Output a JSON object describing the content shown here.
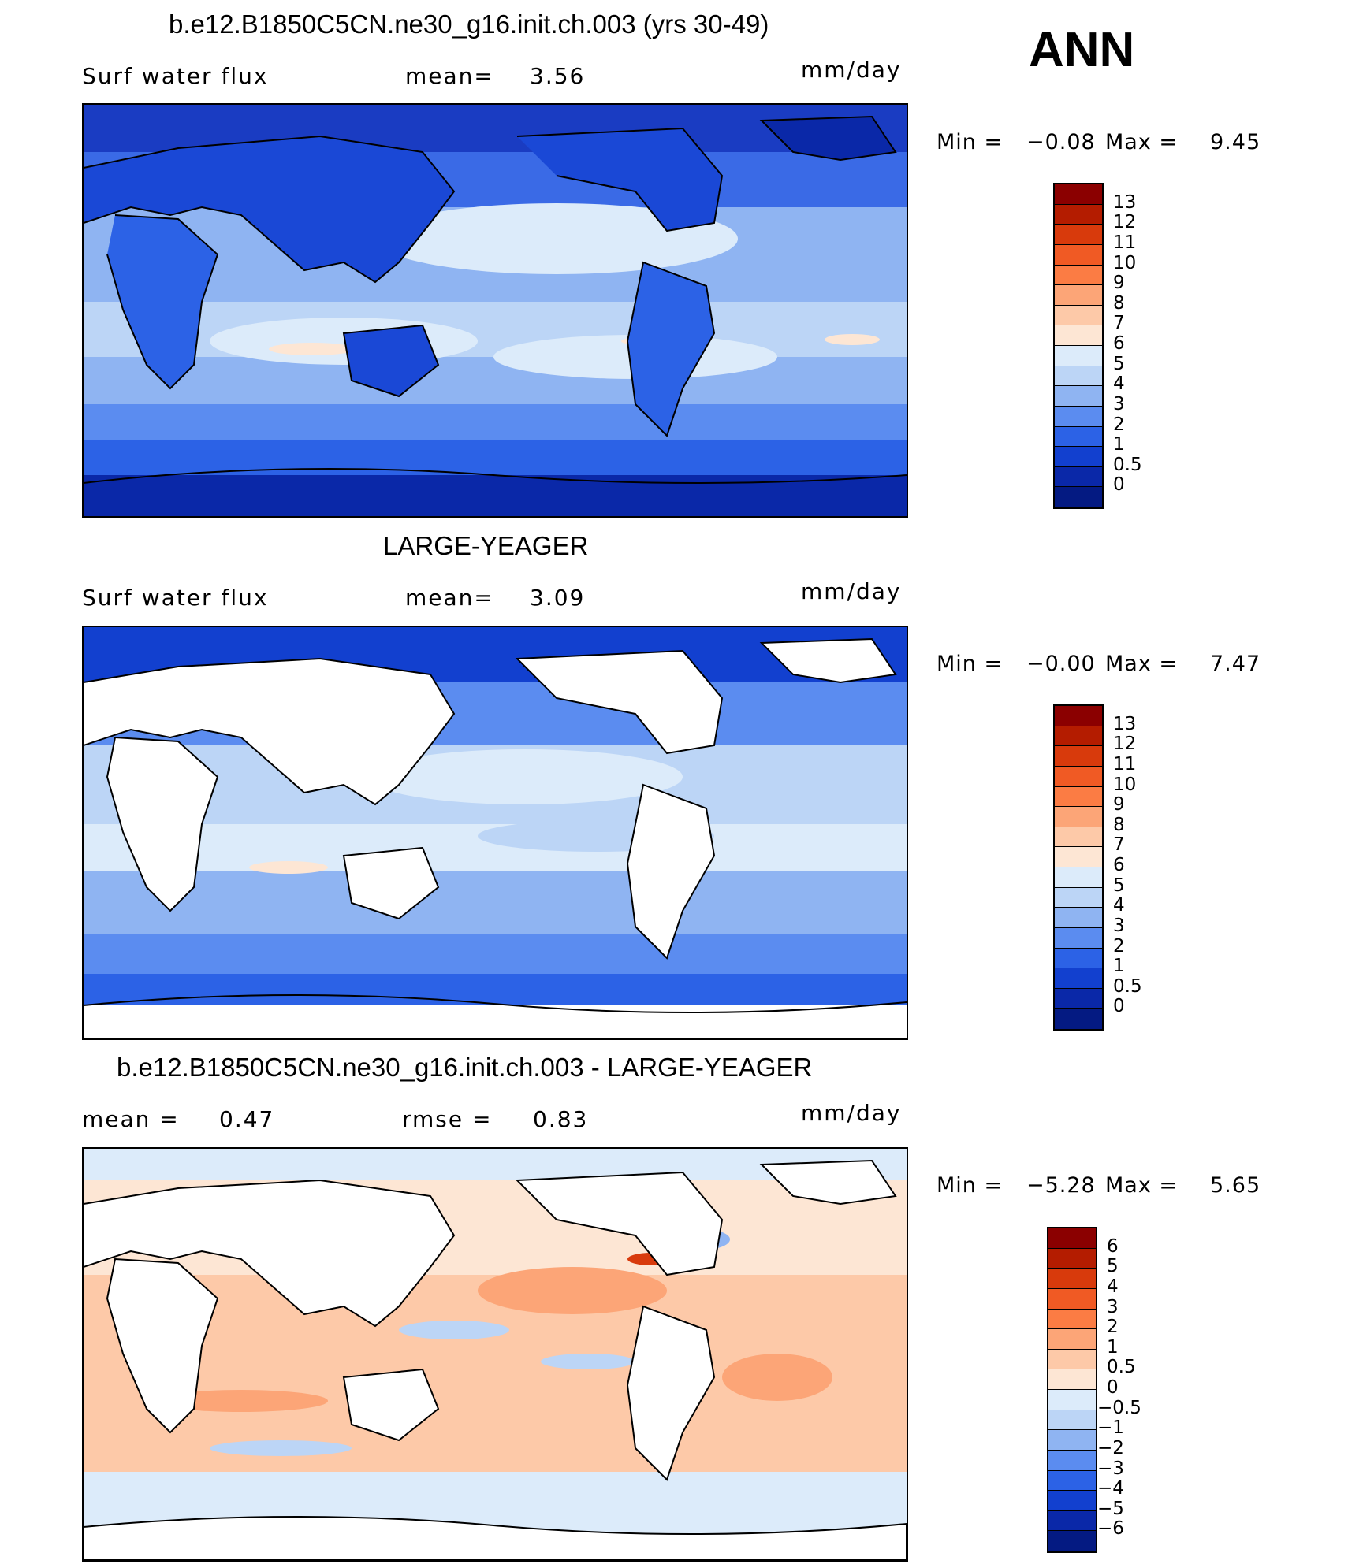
{
  "panel1": {
    "title": "b.e12.B1850C5CN.ne30_g16.init.ch.003 (yrs 30-49)",
    "left_label": "Surf water flux",
    "mid_label": "mean=",
    "mid_value": "3.56",
    "units": "mm/day",
    "min_label": "Min =",
    "min_value": "−0.08",
    "max_label": "Max =",
    "max_value": "9.45",
    "colorbar_labels": [
      "13",
      "12",
      "11",
      "10",
      "9",
      "8",
      "7",
      "6",
      "5",
      "4",
      "3",
      "2",
      "1",
      "0.5",
      "0"
    ],
    "colors": [
      "#8b0000",
      "#b41c00",
      "#d83a0c",
      "#f05a24",
      "#fb7c44",
      "#fca577",
      "#fdc9a8",
      "#fde6d4",
      "#dcebfa",
      "#bcd5f6",
      "#8fb4f2",
      "#5b8cf0",
      "#2c62e6",
      "#1240cf",
      "#0a28a8",
      "#041a82"
    ]
  },
  "panel2": {
    "title": "LARGE-YEAGER",
    "left_label": "Surf water flux",
    "mid_label": "mean=",
    "mid_value": "3.09",
    "units": "mm/day",
    "min_label": "Min =",
    "min_value": "−0.00",
    "max_label": "Max =",
    "max_value": "7.47",
    "colorbar_labels": [
      "13",
      "12",
      "11",
      "10",
      "9",
      "8",
      "7",
      "6",
      "5",
      "4",
      "3",
      "2",
      "1",
      "0.5",
      "0"
    ],
    "colors": [
      "#8b0000",
      "#b41c00",
      "#d83a0c",
      "#f05a24",
      "#fb7c44",
      "#fca577",
      "#fdc9a8",
      "#fde6d4",
      "#dcebfa",
      "#bcd5f6",
      "#8fb4f2",
      "#5b8cf0",
      "#2c62e6",
      "#1240cf",
      "#0a28a8",
      "#041a82"
    ]
  },
  "panel3": {
    "title": "b.e12.B1850C5CN.ne30_g16.init.ch.003 - LARGE-YEAGER",
    "left_label": "mean =",
    "left_value": "0.47",
    "mid_label": "rmse =",
    "mid_value": "0.83",
    "units": "mm/day",
    "min_label": "Min =",
    "min_value": "−5.28",
    "max_label": "Max =",
    "max_value": "5.65",
    "colorbar_labels": [
      "6",
      "5",
      "4",
      "3",
      "2",
      "1",
      "0.5",
      "0",
      "−0.5",
      "−1",
      "−2",
      "−3",
      "−4",
      "−5",
      "−6"
    ],
    "colors": [
      "#8b0000",
      "#b41c00",
      "#d83a0c",
      "#f05a24",
      "#fb7c44",
      "#fca577",
      "#fdc9a8",
      "#fde6d4",
      "#dcebfa",
      "#bcd5f6",
      "#8fb4f2",
      "#5b8cf0",
      "#2c62e6",
      "#1240cf",
      "#0a28a8",
      "#041a82"
    ]
  },
  "season": "ANN"
}
